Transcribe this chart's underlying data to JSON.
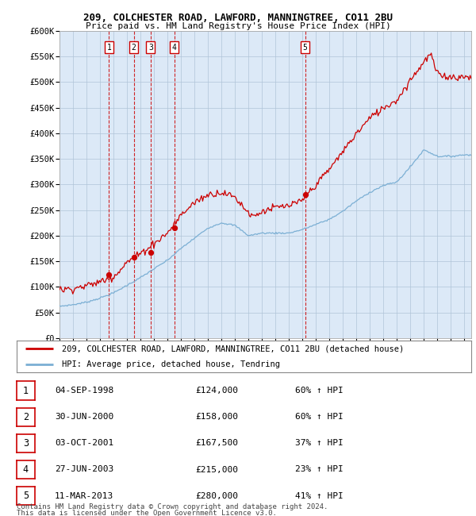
{
  "title1": "209, COLCHESTER ROAD, LAWFORD, MANNINGTREE, CO11 2BU",
  "title2": "Price paid vs. HM Land Registry's House Price Index (HPI)",
  "ylabel_ticks": [
    "£0",
    "£50K",
    "£100K",
    "£150K",
    "£200K",
    "£250K",
    "£300K",
    "£350K",
    "£400K",
    "£450K",
    "£500K",
    "£550K",
    "£600K"
  ],
  "ytick_values": [
    0,
    50000,
    100000,
    150000,
    200000,
    250000,
    300000,
    350000,
    400000,
    450000,
    500000,
    550000,
    600000
  ],
  "hpi_color": "#7bafd4",
  "price_color": "#cc0000",
  "background_color": "#dce9f7",
  "plot_bg": "#ffffff",
  "grid_color": "#b0c4d8",
  "sale_dates_x": [
    1998.67,
    2000.5,
    2001.75,
    2003.5,
    2013.19
  ],
  "sale_prices_y": [
    124000,
    158000,
    167500,
    215000,
    280000
  ],
  "sale_labels": [
    "1",
    "2",
    "3",
    "4",
    "5"
  ],
  "sale_date_strs": [
    "04-SEP-1998",
    "30-JUN-2000",
    "03-OCT-2001",
    "27-JUN-2003",
    "11-MAR-2013"
  ],
  "sale_price_strs": [
    "£124,000",
    "£158,000",
    "£167,500",
    "£215,000",
    "£280,000"
  ],
  "sale_hpi_strs": [
    "60% ↑ HPI",
    "60% ↑ HPI",
    "37% ↑ HPI",
    "23% ↑ HPI",
    "41% ↑ HPI"
  ],
  "legend_line1": "209, COLCHESTER ROAD, LAWFORD, MANNINGTREE, CO11 2BU (detached house)",
  "legend_line2": "HPI: Average price, detached house, Tendring",
  "footer1": "Contains HM Land Registry data © Crown copyright and database right 2024.",
  "footer2": "This data is licensed under the Open Government Licence v3.0.",
  "xmin": 1995.0,
  "xmax": 2025.5,
  "ymin": 0,
  "ymax": 600000
}
